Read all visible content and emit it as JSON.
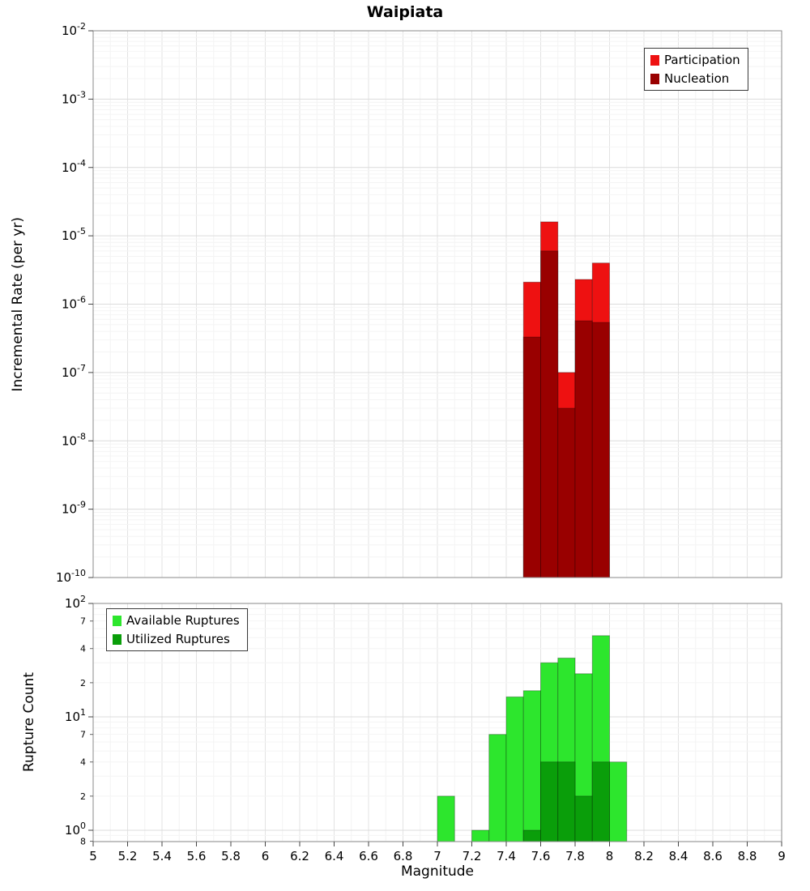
{
  "title": "Waipiata",
  "xlabel": "Magnitude",
  "chart_data": [
    {
      "id": "rate",
      "type": "bar",
      "ylabel": "Incremental Rate (per yr)",
      "yscale": "log",
      "ylim": [
        1e-10,
        0.01
      ],
      "xlim": [
        5,
        9
      ],
      "bin_width": 0.1,
      "grid": true,
      "legend_position": "top-right",
      "y_tick_exponents": [
        -2,
        -3,
        -4,
        -5,
        -6,
        -7,
        -8,
        -9,
        -10
      ],
      "series": [
        {
          "name": "Participation",
          "color": "#ee1111",
          "x": [
            7.55,
            7.65,
            7.75,
            7.85,
            7.95
          ],
          "values": [
            2.1e-06,
            1.6e-05,
            1e-07,
            2.3e-06,
            4e-06
          ]
        },
        {
          "name": "Nucleation",
          "color": "#990000",
          "x": [
            7.55,
            7.65,
            7.75,
            7.85,
            7.95
          ],
          "values": [
            3.3e-07,
            6e-06,
            3e-08,
            5.7e-07,
            5.4e-07
          ]
        }
      ]
    },
    {
      "id": "count",
      "type": "bar",
      "ylabel": "Rupture Count",
      "yscale": "log",
      "ylim": [
        0.79,
        100
      ],
      "xlim": [
        5,
        9
      ],
      "bin_width": 0.1,
      "grid": true,
      "legend_position": "top-left",
      "y_tick_exponents": [
        2,
        1,
        0
      ],
      "y_minor_labels": [
        70,
        40,
        20,
        7,
        4,
        2,
        0.8
      ],
      "x_ticks": [
        5,
        5.2,
        5.4,
        5.6,
        5.8,
        6,
        6.2,
        6.4,
        6.6,
        6.8,
        7,
        7.2,
        7.4,
        7.6,
        7.8,
        8,
        8.2,
        8.4,
        8.6,
        8.8,
        9
      ],
      "series": [
        {
          "name": "Available Ruptures",
          "color": "#2de62d",
          "x": [
            7.05,
            7.25,
            7.35,
            7.45,
            7.55,
            7.65,
            7.75,
            7.85,
            7.95,
            8.05
          ],
          "values": [
            2,
            1,
            7,
            15,
            17,
            30,
            33,
            24,
            52,
            4
          ]
        },
        {
          "name": "Utilized Ruptures",
          "color": "#0a9e0a",
          "x": [
            7.55,
            7.65,
            7.75,
            7.85,
            7.95
          ],
          "values": [
            1,
            4,
            4,
            2,
            4
          ]
        }
      ]
    }
  ]
}
